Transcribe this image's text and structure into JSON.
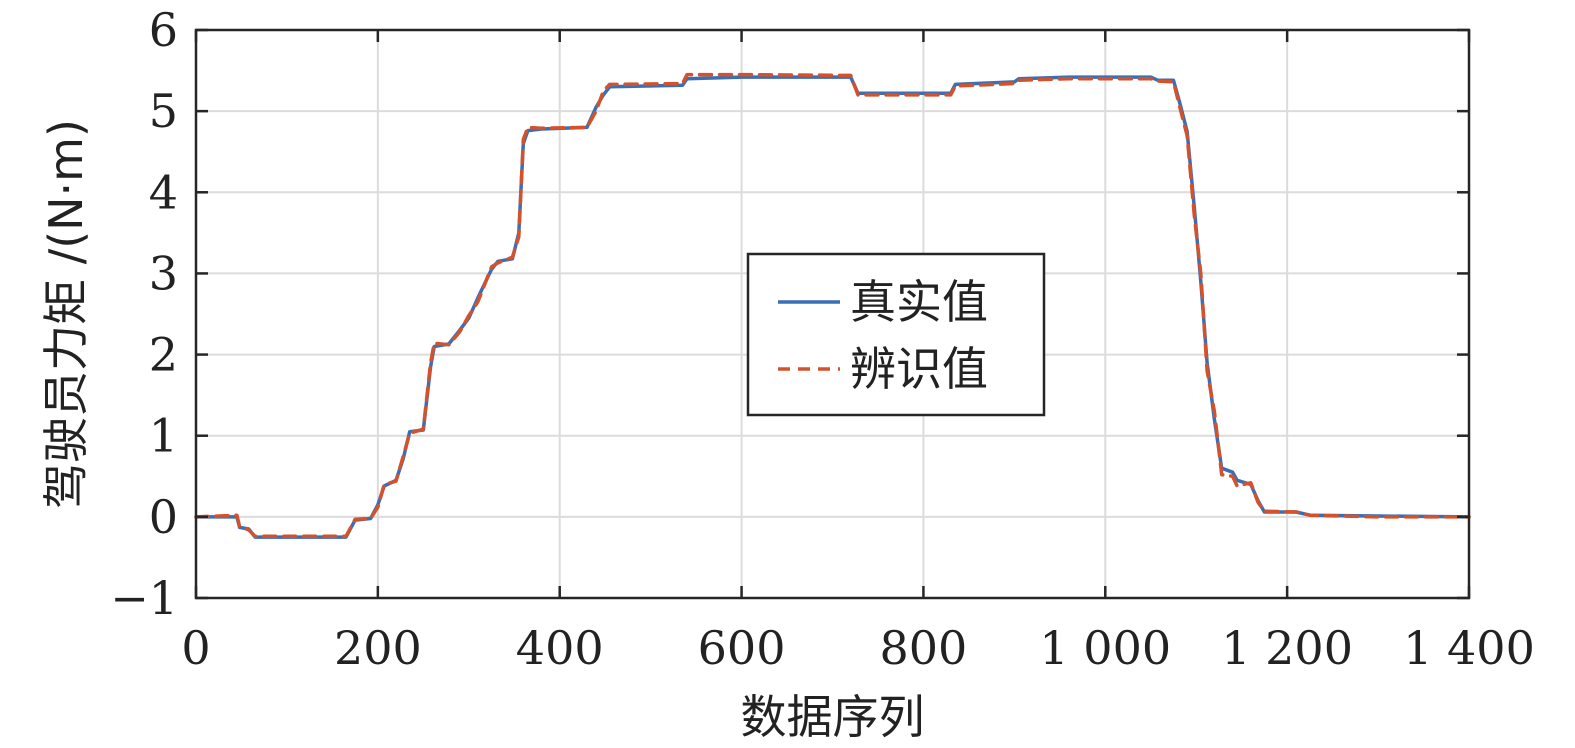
{
  "chart_data": {
    "type": "line",
    "title": "",
    "xlabel": "数据序列",
    "ylabel": "驾驶员力矩 /(N·m)",
    "xlim": [
      0,
      1400
    ],
    "ylim": [
      -1,
      6
    ],
    "x_ticks": [
      0,
      200,
      400,
      600,
      800,
      1000,
      1200,
      1400
    ],
    "x_tick_labels": [
      "0",
      "200",
      "400",
      "600",
      "800",
      "1 000",
      "1 200",
      "1 400"
    ],
    "y_ticks": [
      -1,
      0,
      1,
      2,
      3,
      4,
      5,
      6
    ],
    "y_tick_labels": [
      "−1",
      "0",
      "1",
      "2",
      "3",
      "4",
      "5",
      "6"
    ],
    "grid": true,
    "legend_position": "center",
    "series": [
      {
        "name": "真实值",
        "color": "#3a6fb5",
        "style": "solid",
        "points": [
          [
            0,
            0
          ],
          [
            45,
            0
          ],
          [
            48,
            -0.13
          ],
          [
            58,
            -0.15
          ],
          [
            65,
            -0.25
          ],
          [
            165,
            -0.25
          ],
          [
            175,
            -0.04
          ],
          [
            192,
            -0.02
          ],
          [
            200,
            0.15
          ],
          [
            207,
            0.38
          ],
          [
            220,
            0.45
          ],
          [
            228,
            0.72
          ],
          [
            235,
            1.05
          ],
          [
            250,
            1.07
          ],
          [
            258,
            1.85
          ],
          [
            262,
            2.1
          ],
          [
            278,
            2.13
          ],
          [
            290,
            2.3
          ],
          [
            300,
            2.45
          ],
          [
            310,
            2.7
          ],
          [
            325,
            3.05
          ],
          [
            332,
            3.15
          ],
          [
            348,
            3.18
          ],
          [
            355,
            3.5
          ],
          [
            360,
            4.6
          ],
          [
            365,
            4.76
          ],
          [
            380,
            4.78
          ],
          [
            430,
            4.8
          ],
          [
            440,
            5.05
          ],
          [
            448,
            5.2
          ],
          [
            455,
            5.3
          ],
          [
            535,
            5.32
          ],
          [
            540,
            5.4
          ],
          [
            600,
            5.42
          ],
          [
            720,
            5.42
          ],
          [
            728,
            5.22
          ],
          [
            830,
            5.22
          ],
          [
            835,
            5.33
          ],
          [
            900,
            5.36
          ],
          [
            905,
            5.4
          ],
          [
            960,
            5.42
          ],
          [
            1050,
            5.42
          ],
          [
            1058,
            5.38
          ],
          [
            1075,
            5.38
          ],
          [
            1082,
            5.1
          ],
          [
            1090,
            4.75
          ],
          [
            1098,
            3.8
          ],
          [
            1105,
            2.9
          ],
          [
            1112,
            1.9
          ],
          [
            1120,
            1.2
          ],
          [
            1128,
            0.6
          ],
          [
            1140,
            0.55
          ],
          [
            1145,
            0.45
          ],
          [
            1160,
            0.4
          ],
          [
            1168,
            0.2
          ],
          [
            1175,
            0.06
          ],
          [
            1210,
            0.06
          ],
          [
            1225,
            0.02
          ],
          [
            1300,
            0.01
          ],
          [
            1400,
            0.0
          ]
        ]
      },
      {
        "name": "辨识值",
        "color": "#d2522d",
        "style": "dashed",
        "points": [
          [
            0,
            0
          ],
          [
            45,
            0.02
          ],
          [
            48,
            -0.12
          ],
          [
            58,
            -0.16
          ],
          [
            65,
            -0.24
          ],
          [
            165,
            -0.24
          ],
          [
            175,
            -0.03
          ],
          [
            192,
            -0.02
          ],
          [
            200,
            0.12
          ],
          [
            207,
            0.4
          ],
          [
            220,
            0.44
          ],
          [
            228,
            0.75
          ],
          [
            235,
            1.03
          ],
          [
            250,
            1.08
          ],
          [
            258,
            1.9
          ],
          [
            262,
            2.14
          ],
          [
            278,
            2.12
          ],
          [
            290,
            2.28
          ],
          [
            300,
            2.48
          ],
          [
            310,
            2.65
          ],
          [
            325,
            3.08
          ],
          [
            332,
            3.13
          ],
          [
            348,
            3.2
          ],
          [
            355,
            3.45
          ],
          [
            360,
            4.65
          ],
          [
            365,
            4.8
          ],
          [
            380,
            4.79
          ],
          [
            430,
            4.8
          ],
          [
            440,
            5.0
          ],
          [
            448,
            5.25
          ],
          [
            455,
            5.33
          ],
          [
            535,
            5.34
          ],
          [
            540,
            5.45
          ],
          [
            600,
            5.45
          ],
          [
            720,
            5.44
          ],
          [
            728,
            5.2
          ],
          [
            830,
            5.2
          ],
          [
            835,
            5.31
          ],
          [
            900,
            5.34
          ],
          [
            905,
            5.38
          ],
          [
            960,
            5.4
          ],
          [
            1050,
            5.4
          ],
          [
            1058,
            5.37
          ],
          [
            1075,
            5.36
          ],
          [
            1082,
            5.05
          ],
          [
            1090,
            4.7
          ],
          [
            1098,
            3.7
          ],
          [
            1105,
            3.0
          ],
          [
            1112,
            1.8
          ],
          [
            1120,
            1.3
          ],
          [
            1128,
            0.52
          ],
          [
            1140,
            0.5
          ],
          [
            1145,
            0.38
          ],
          [
            1160,
            0.42
          ],
          [
            1168,
            0.18
          ],
          [
            1175,
            0.07
          ],
          [
            1210,
            0.06
          ],
          [
            1225,
            0.02
          ],
          [
            1300,
            0.0
          ],
          [
            1400,
            0.0
          ]
        ]
      }
    ]
  }
}
